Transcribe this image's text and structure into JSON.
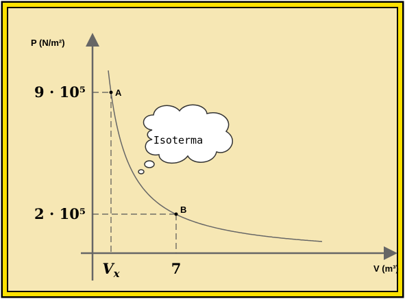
{
  "axes": {
    "y_label": "P (N/m²)",
    "x_label": "V (m³)"
  },
  "y_ticks": [
    "9 · 10⁵",
    "2 · 10⁵"
  ],
  "x_ticks": [
    {
      "main": "V",
      "sub": "x"
    },
    {
      "main": "7"
    }
  ],
  "points": [
    {
      "label": "A"
    },
    {
      "label": "B"
    }
  ],
  "cloud": {
    "label": "Isoterma"
  }
}
